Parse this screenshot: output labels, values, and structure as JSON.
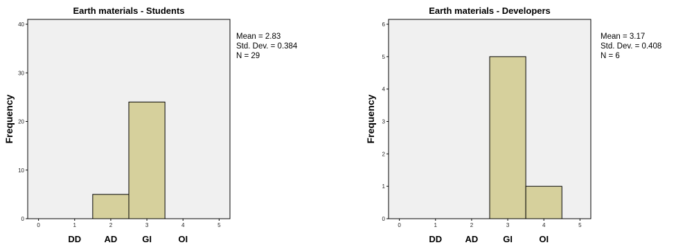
{
  "chart_data": [
    {
      "type": "bar",
      "title": "Earth materials - Students",
      "ylabel": "Frequency",
      "xlim": [
        -0.3,
        5.3
      ],
      "ylim": [
        0,
        41
      ],
      "xticks": [
        "0",
        "1",
        "2",
        "3",
        "4",
        "5"
      ],
      "yticks": [
        "0",
        "10",
        "20",
        "30",
        "40"
      ],
      "bars": [
        {
          "x": 2,
          "value": 5
        },
        {
          "x": 3,
          "value": 24
        }
      ],
      "bar_color": "#d6d09c",
      "category_labels": [
        "DD",
        "AD",
        "GI",
        "OI"
      ],
      "stats": [
        "Mean = 2.83",
        "Std. Dev. = 0.384",
        "N = 29"
      ]
    },
    {
      "type": "bar",
      "title": "Earth materials - Developers",
      "ylabel": "Frequency",
      "xlim": [
        -0.3,
        5.3
      ],
      "ylim": [
        0,
        6.15
      ],
      "xticks": [
        "0",
        "1",
        "2",
        "3",
        "4",
        "5"
      ],
      "yticks": [
        "0",
        "1",
        "2",
        "3",
        "4",
        "5",
        "6"
      ],
      "bars": [
        {
          "x": 3,
          "value": 5
        },
        {
          "x": 4,
          "value": 1
        }
      ],
      "bar_color": "#d6d09c",
      "category_labels": [
        "DD",
        "AD",
        "GI",
        "OI"
      ],
      "stats": [
        "Mean = 3.17",
        "Std. Dev. = 0.408",
        "N = 6"
      ]
    }
  ]
}
